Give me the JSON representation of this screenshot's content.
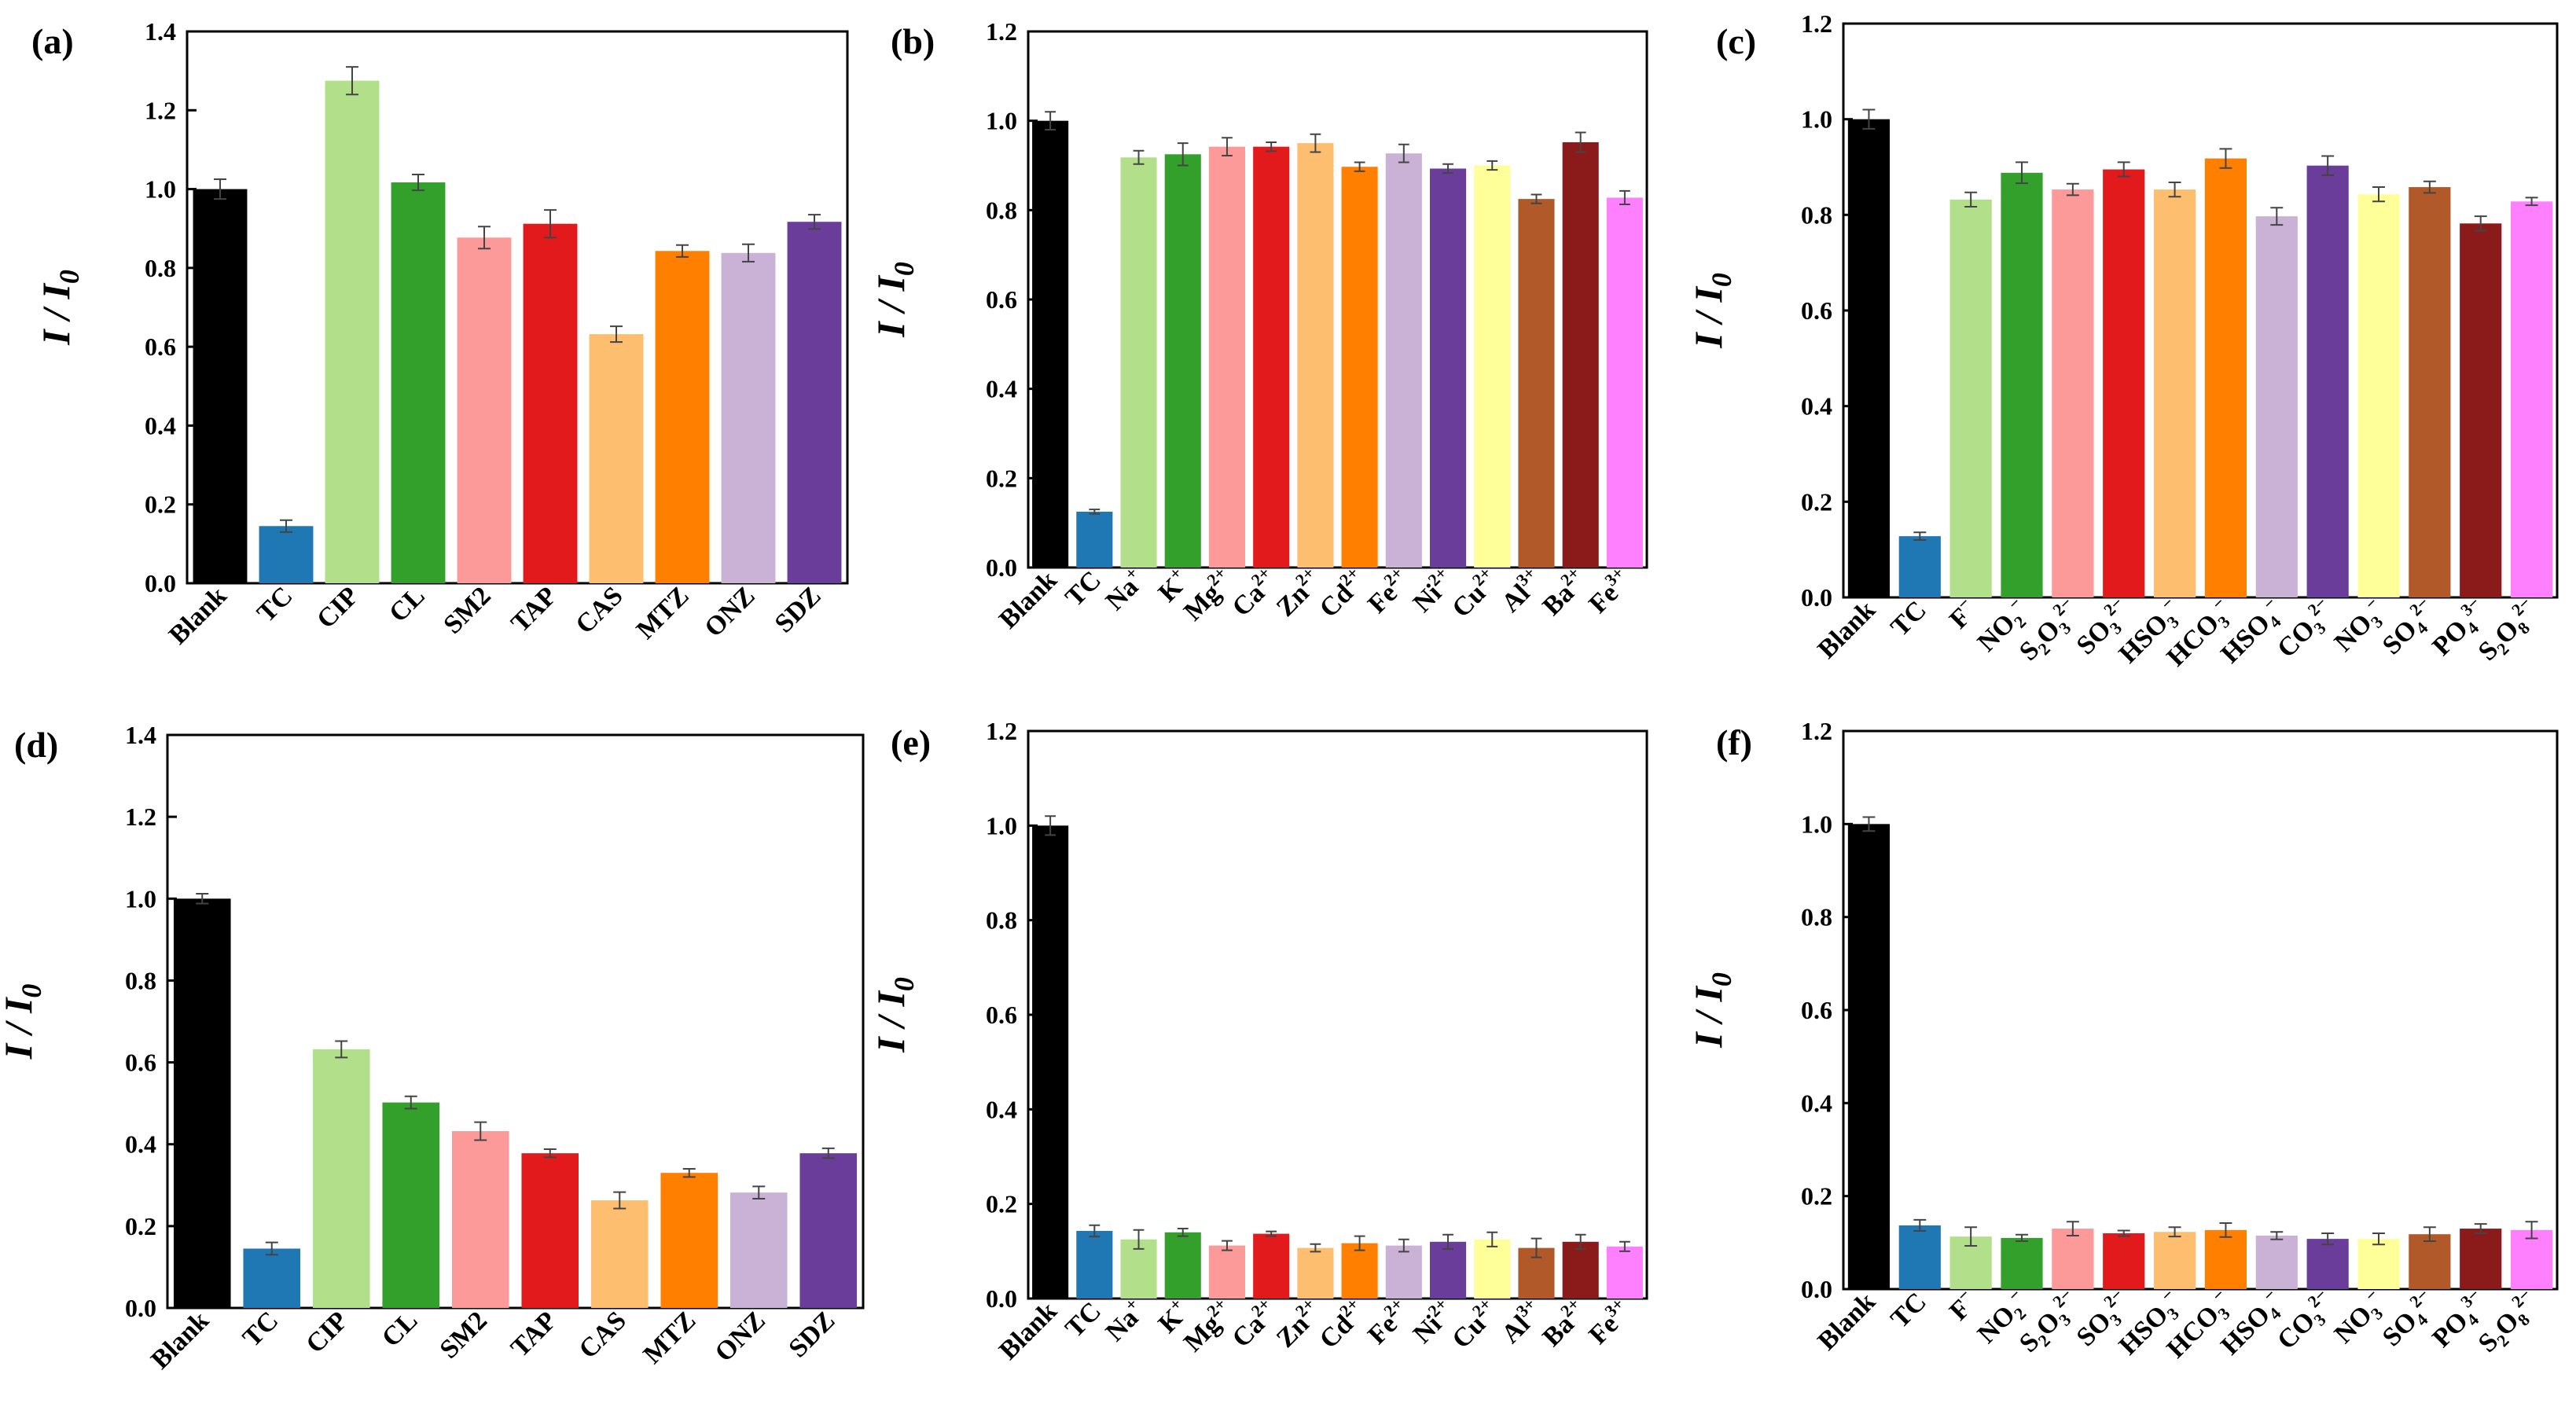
{
  "y_axis_label": {
    "main": "I / I",
    "sub": "0"
  },
  "colors": {
    "Blank": "#000000",
    "TC": "#1f77b4",
    "c3": "#b2df8a",
    "c4": "#33a02c",
    "c5": "#fb9a99",
    "c6": "#e31a1c",
    "c7": "#fdbf6f",
    "c8": "#ff7f00",
    "c9": "#cab2d6",
    "c10": "#6a3d9a",
    "c11": "#ffff99",
    "c12": "#b15928",
    "c13": "#8b1a1a",
    "c14": "#ff80ff"
  },
  "chart_data": [
    {
      "panel": "(a)",
      "type": "bar",
      "ylim": [
        0,
        1.4
      ],
      "yticks": [
        "0.0",
        "0.2",
        "0.4",
        "0.6",
        "0.8",
        "1.0",
        "1.2",
        "1.4"
      ],
      "categories": [
        {
          "label": "Blank"
        },
        {
          "label": "TC"
        },
        {
          "label": "CIP"
        },
        {
          "label": "CL"
        },
        {
          "label": "SM2"
        },
        {
          "label": "TAP"
        },
        {
          "label": "CAS"
        },
        {
          "label": "MTZ"
        },
        {
          "label": "ONZ"
        },
        {
          "label": "SDZ"
        }
      ],
      "values": [
        1.0,
        0.145,
        1.275,
        1.017,
        0.877,
        0.912,
        0.632,
        0.843,
        0.838,
        0.917
      ],
      "errors": [
        0.025,
        0.015,
        0.035,
        0.02,
        0.028,
        0.035,
        0.02,
        0.015,
        0.022,
        0.018
      ],
      "color_keys": [
        "Blank",
        "TC",
        "c3",
        "c4",
        "c5",
        "c6",
        "c7",
        "c8",
        "c9",
        "c10"
      ]
    },
    {
      "panel": "(b)",
      "type": "bar",
      "ylim": [
        0,
        1.2
      ],
      "yticks": [
        "0.0",
        "0.2",
        "0.4",
        "0.6",
        "0.8",
        "1.0",
        "1.2"
      ],
      "categories": [
        {
          "label": "Blank"
        },
        {
          "label": "TC"
        },
        {
          "label": "Na",
          "sup": "+"
        },
        {
          "label": "K",
          "sup": "+"
        },
        {
          "label": "Mg",
          "sup": "2+"
        },
        {
          "label": "Ca",
          "sup": "2+"
        },
        {
          "label": "Zn",
          "sup": "2+"
        },
        {
          "label": "Cd",
          "sup": "2+"
        },
        {
          "label": "Fe",
          "sup": "2+"
        },
        {
          "label": "Ni",
          "sup": "2+"
        },
        {
          "label": "Cu",
          "sup": "2+"
        },
        {
          "label": "Al",
          "sup": "3+"
        },
        {
          "label": "Ba",
          "sup": "2+"
        },
        {
          "label": "Fe",
          "sup": "3+"
        }
      ],
      "values": [
        1.0,
        0.125,
        0.918,
        0.925,
        0.942,
        0.942,
        0.95,
        0.897,
        0.927,
        0.893,
        0.9,
        0.825,
        0.952,
        0.828
      ],
      "errors": [
        0.02,
        0.005,
        0.015,
        0.025,
        0.02,
        0.01,
        0.02,
        0.01,
        0.02,
        0.01,
        0.01,
        0.01,
        0.022,
        0.015
      ],
      "color_keys": [
        "Blank",
        "TC",
        "c3",
        "c4",
        "c5",
        "c6",
        "c7",
        "c8",
        "c9",
        "c10",
        "c11",
        "c12",
        "c13",
        "c14"
      ]
    },
    {
      "panel": "(c)",
      "type": "bar",
      "ylim": [
        0,
        1.2
      ],
      "yticks": [
        "0.0",
        "0.2",
        "0.4",
        "0.6",
        "0.8",
        "1.0",
        "1.2"
      ],
      "categories": [
        {
          "label": "Blank"
        },
        {
          "label": "TC"
        },
        {
          "label": "F",
          "sup": "−"
        },
        {
          "label": "NO",
          "sub": "2",
          "sup": "−"
        },
        {
          "label": "S",
          "sub": "2",
          "label2": "O",
          "sub2": "3",
          "sup": "2−"
        },
        {
          "label": "SO",
          "sub": "3",
          "sup": "2−"
        },
        {
          "label": "HSO",
          "sub": "3",
          "sup": "−"
        },
        {
          "label": "HCO",
          "sub": "3",
          "sup": "−"
        },
        {
          "label": "HSO",
          "sub": "4",
          "sup": "−"
        },
        {
          "label": "CO",
          "sub": "3",
          "sup": "2−"
        },
        {
          "label": "NO",
          "sub": "3",
          "sup": "−"
        },
        {
          "label": "SO",
          "sub": "4",
          "sup": "2−"
        },
        {
          "label": "PO",
          "sub": "4",
          "sup": "3−"
        },
        {
          "label": "S",
          "sub": "2",
          "label2": "O",
          "sub2": "8",
          "sup": "2−"
        }
      ],
      "values": [
        1.0,
        0.128,
        0.832,
        0.888,
        0.853,
        0.895,
        0.853,
        0.918,
        0.797,
        0.903,
        0.843,
        0.858,
        0.782,
        0.828
      ],
      "errors": [
        0.02,
        0.008,
        0.015,
        0.022,
        0.012,
        0.015,
        0.015,
        0.02,
        0.018,
        0.02,
        0.015,
        0.012,
        0.015,
        0.008
      ],
      "color_keys": [
        "Blank",
        "TC",
        "c3",
        "c4",
        "c5",
        "c6",
        "c7",
        "c8",
        "c9",
        "c10",
        "c11",
        "c12",
        "c13",
        "c14"
      ]
    },
    {
      "panel": "(d)",
      "type": "bar",
      "ylim": [
        0,
        1.4
      ],
      "yticks": [
        "0.0",
        "0.2",
        "0.4",
        "0.6",
        "0.8",
        "1.0",
        "1.2",
        "1.4"
      ],
      "categories": [
        {
          "label": "Blank"
        },
        {
          "label": "TC"
        },
        {
          "label": "CIP"
        },
        {
          "label": "CL"
        },
        {
          "label": "SM2"
        },
        {
          "label": "TAP"
        },
        {
          "label": "CAS"
        },
        {
          "label": "MTZ"
        },
        {
          "label": "ONZ"
        },
        {
          "label": "SDZ"
        }
      ],
      "values": [
        1.0,
        0.145,
        0.632,
        0.502,
        0.432,
        0.378,
        0.263,
        0.33,
        0.282,
        0.378
      ],
      "errors": [
        0.012,
        0.015,
        0.02,
        0.015,
        0.022,
        0.01,
        0.02,
        0.01,
        0.015,
        0.012
      ],
      "color_keys": [
        "Blank",
        "TC",
        "c3",
        "c4",
        "c5",
        "c6",
        "c7",
        "c8",
        "c9",
        "c10"
      ]
    },
    {
      "panel": "(e)",
      "type": "bar",
      "ylim": [
        0,
        1.2
      ],
      "yticks": [
        "0.0",
        "0.2",
        "0.4",
        "0.6",
        "0.8",
        "1.0",
        "1.2"
      ],
      "categories": [
        {
          "label": "Blank"
        },
        {
          "label": "TC"
        },
        {
          "label": "Na",
          "sup": "+"
        },
        {
          "label": "K",
          "sup": "+"
        },
        {
          "label": "Mg",
          "sup": "2+"
        },
        {
          "label": "Ca",
          "sup": "2+"
        },
        {
          "label": "Zn",
          "sup": "2+"
        },
        {
          "label": "Cd",
          "sup": "2+"
        },
        {
          "label": "Fe",
          "sup": "2+"
        },
        {
          "label": "Ni",
          "sup": "2+"
        },
        {
          "label": "Cu",
          "sup": "2+"
        },
        {
          "label": "Al",
          "sup": "3+"
        },
        {
          "label": "Ba",
          "sup": "2+"
        },
        {
          "label": "Fe",
          "sup": "3+"
        }
      ],
      "values": [
        1.0,
        0.143,
        0.125,
        0.14,
        0.112,
        0.137,
        0.107,
        0.117,
        0.112,
        0.12,
        0.125,
        0.107,
        0.12,
        0.11
      ],
      "errors": [
        0.02,
        0.012,
        0.02,
        0.008,
        0.01,
        0.005,
        0.008,
        0.015,
        0.013,
        0.015,
        0.015,
        0.02,
        0.015,
        0.01
      ],
      "color_keys": [
        "Blank",
        "TC",
        "c3",
        "c4",
        "c5",
        "c6",
        "c7",
        "c8",
        "c9",
        "c10",
        "c11",
        "c12",
        "c13",
        "c14"
      ]
    },
    {
      "panel": "(f)",
      "type": "bar",
      "ylim": [
        0,
        1.2
      ],
      "yticks": [
        "0.0",
        "0.2",
        "0.4",
        "0.6",
        "0.8",
        "1.0",
        "1.2"
      ],
      "categories": [
        {
          "label": "Blank"
        },
        {
          "label": "TC"
        },
        {
          "label": "F",
          "sup": "−"
        },
        {
          "label": "NO",
          "sub": "2",
          "sup": "−"
        },
        {
          "label": "S",
          "sub": "2",
          "label2": "O",
          "sub2": "3",
          "sup": "2−"
        },
        {
          "label": "SO",
          "sub": "3",
          "sup": "2−"
        },
        {
          "label": "HSO",
          "sub": "3",
          "sup": "−"
        },
        {
          "label": "HCO",
          "sub": "3",
          "sup": "−"
        },
        {
          "label": "HSO",
          "sub": "4",
          "sup": "−"
        },
        {
          "label": "CO",
          "sub": "3",
          "sup": "2−"
        },
        {
          "label": "NO",
          "sub": "3",
          "sup": "−"
        },
        {
          "label": "SO",
          "sub": "4",
          "sup": "2−"
        },
        {
          "label": "PO",
          "sub": "4",
          "sup": "3−"
        },
        {
          "label": "S",
          "sub": "2",
          "label2": "O",
          "sub2": "8",
          "sup": "2−"
        }
      ],
      "values": [
        1.0,
        0.137,
        0.113,
        0.11,
        0.13,
        0.12,
        0.123,
        0.127,
        0.115,
        0.108,
        0.108,
        0.118,
        0.13,
        0.127
      ],
      "errors": [
        0.015,
        0.012,
        0.02,
        0.007,
        0.015,
        0.006,
        0.01,
        0.015,
        0.008,
        0.012,
        0.012,
        0.015,
        0.01,
        0.018
      ],
      "color_keys": [
        "Blank",
        "TC",
        "c3",
        "c4",
        "c5",
        "c6",
        "c7",
        "c8",
        "c9",
        "c10",
        "c11",
        "c12",
        "c13",
        "c14"
      ]
    }
  ]
}
